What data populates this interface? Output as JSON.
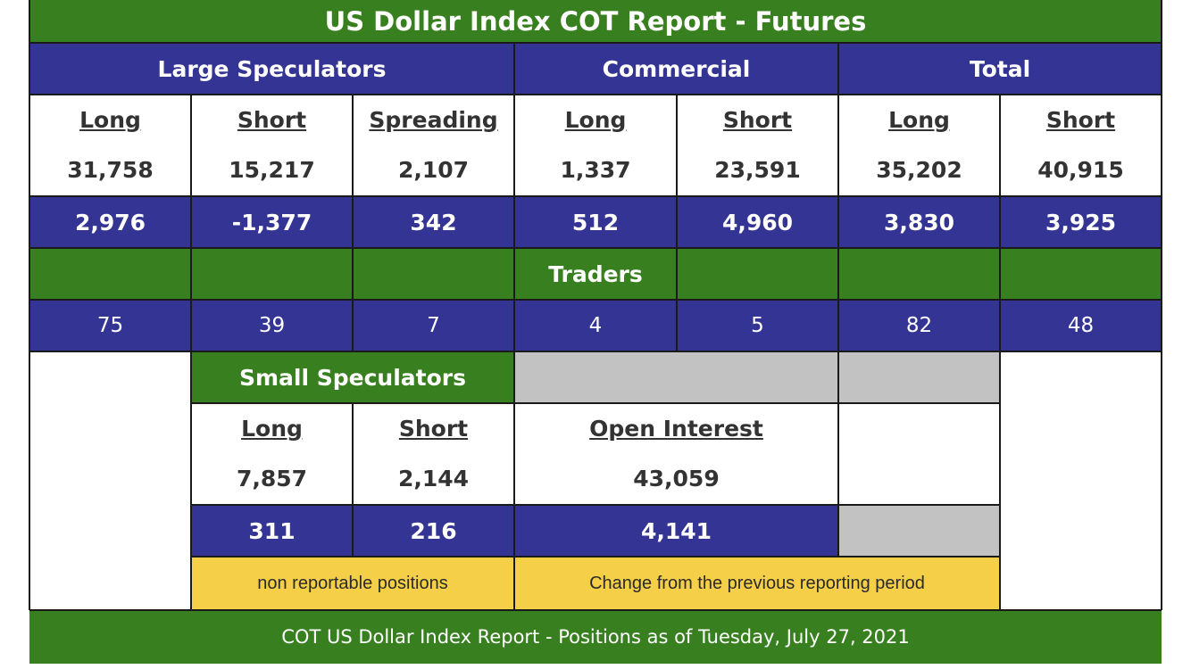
{
  "report": {
    "title": "US Dollar Index COT Report - Futures",
    "groups": {
      "large_speculators": "Large Speculators",
      "commercial": "Commercial",
      "total": "Total"
    },
    "columns": [
      {
        "label": "Long",
        "value": "31,758",
        "change": "2,976",
        "traders": "75"
      },
      {
        "label": "Short",
        "value": "15,217",
        "change": "-1,377",
        "traders": "39"
      },
      {
        "label": "Spreading",
        "value": "2,107",
        "change": "342",
        "traders": "7"
      },
      {
        "label": "Long",
        "value": "1,337",
        "change": "512",
        "traders": "4"
      },
      {
        "label": "Short",
        "value": "23,591",
        "change": "4,960",
        "traders": "5"
      },
      {
        "label": "Long",
        "value": "35,202",
        "change": "3,830",
        "traders": "82"
      },
      {
        "label": "Short",
        "value": "40,915",
        "change": "3,925",
        "traders": "48"
      }
    ],
    "traders_label": "Traders",
    "small_speculators": {
      "title": "Small Speculators",
      "long_label": "Long",
      "long_value": "7,857",
      "long_change": "311",
      "short_label": "Short",
      "short_value": "2,144",
      "short_change": "216"
    },
    "open_interest": {
      "label": "Open Interest",
      "value": "43,059",
      "change": "4,141"
    },
    "legend": {
      "non_reportable": "non reportable positions",
      "change_note": "Change from the previous reporting period"
    },
    "footer": {
      "text": "COT US Dollar Index Report - Positions as of Tuesday, July 27, 2021"
    },
    "colors": {
      "green": "#38801f",
      "blue": "#343494",
      "gray": "#c2c2c2",
      "yellow": "#f5cf48"
    }
  }
}
